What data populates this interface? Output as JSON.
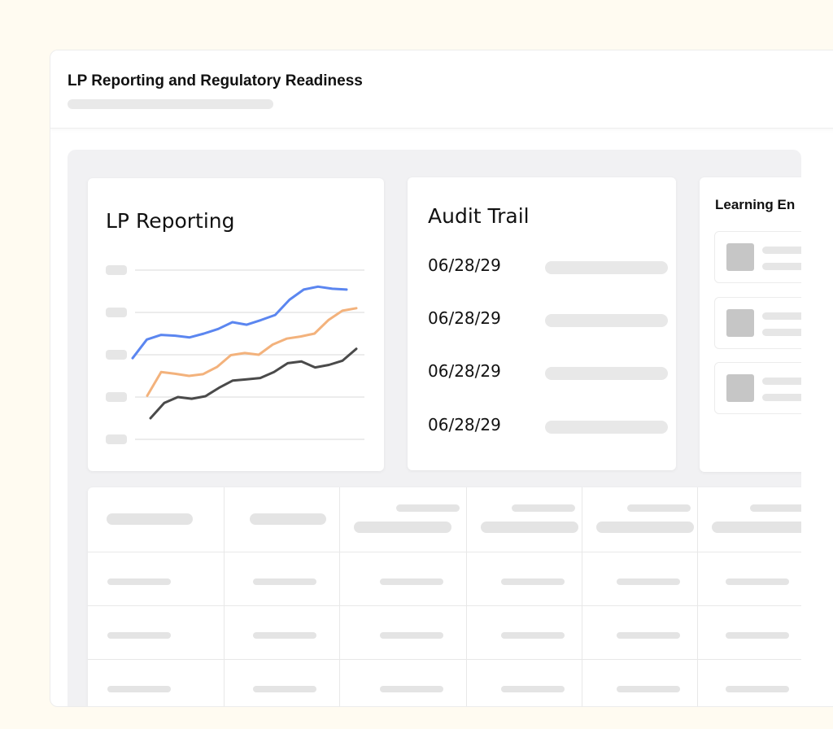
{
  "window": {
    "title": "LP Reporting and Regulatory Readiness"
  },
  "lp_reporting": {
    "title": "LP Reporting"
  },
  "audit_trail": {
    "title": "Audit Trail",
    "entries": [
      {
        "date": "06/28/29"
      },
      {
        "date": "06/28/29"
      },
      {
        "date": "06/28/29"
      },
      {
        "date": "06/28/29"
      }
    ]
  },
  "learning": {
    "title": "Learning En"
  },
  "colors": {
    "series_blue": "#5b86f0",
    "series_orange": "#f3b27c",
    "series_dark": "#4a4a4a",
    "placeholder": "#e4e4e4"
  },
  "chart_data": {
    "type": "line",
    "title": "LP Reporting",
    "xlabel": "",
    "ylabel": "",
    "grid": true,
    "x": [
      0,
      1,
      2,
      3,
      4,
      5,
      6,
      7,
      8,
      9,
      10,
      11,
      12,
      13,
      14,
      15
    ],
    "ylim": [
      0,
      4
    ],
    "series": [
      {
        "color": "#5b86f0",
        "values": [
          1.92,
          2.36,
          2.47,
          2.45,
          2.41,
          2.5,
          2.61,
          2.77,
          2.71,
          2.82,
          2.94,
          3.3,
          3.54,
          3.61,
          3.56,
          3.54
        ]
      },
      {
        "color": "#f3b27c",
        "values": [
          1.03,
          1.59,
          1.55,
          1.5,
          1.54,
          1.71,
          1.99,
          2.04,
          2.0,
          2.24,
          2.38,
          2.43,
          2.5,
          2.82,
          3.04,
          3.1
        ]
      },
      {
        "color": "#4a4a4a",
        "values": [
          0.5,
          0.86,
          1.0,
          0.96,
          1.02,
          1.22,
          1.39,
          1.42,
          1.45,
          1.59,
          1.8,
          1.84,
          1.7,
          1.76,
          1.86,
          2.14
        ]
      }
    ]
  }
}
